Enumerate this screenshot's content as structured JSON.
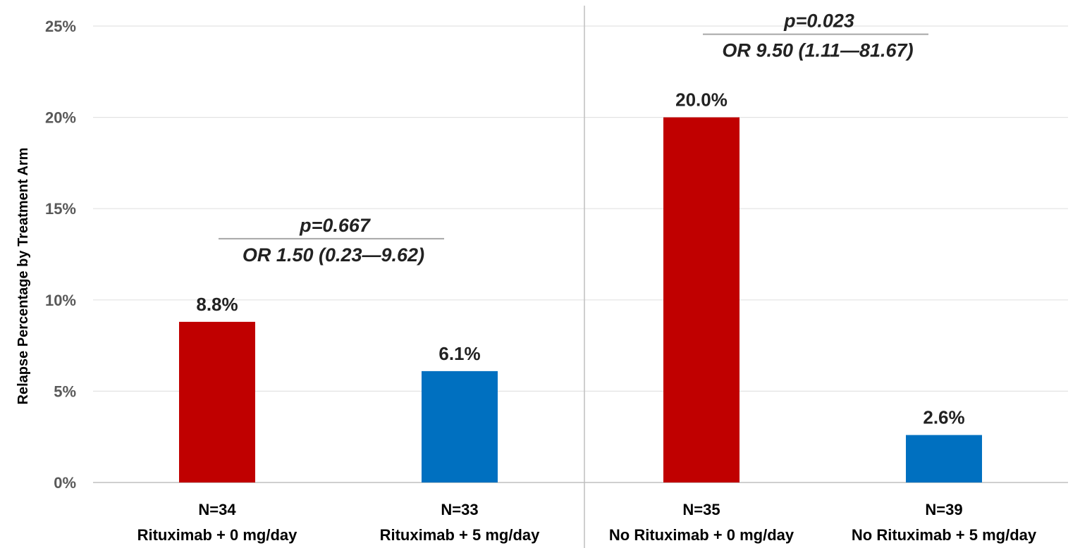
{
  "chart_data": {
    "type": "bar",
    "title": "",
    "xlabel": "",
    "ylabel": "Relapse Percentage by Treatment Arm",
    "ylim": [
      0,
      25
    ],
    "y_ticks": [
      "0%",
      "5%",
      "10%",
      "15%",
      "20%",
      "25%"
    ],
    "grid": true,
    "legend": "none",
    "categories": [
      {
        "n": "N=34",
        "label": "Rituximab + 0 mg/day"
      },
      {
        "n": "N=33",
        "label": "Rituximab + 5 mg/day"
      },
      {
        "n": "N=35",
        "label": "No Rituximab + 0 mg/day"
      },
      {
        "n": "N=39",
        "label": "No Rituximab + 5 mg/day"
      }
    ],
    "values": [
      8.8,
      6.1,
      20.0,
      2.6
    ],
    "data_labels": [
      "8.8%",
      "6.1%",
      "20.0%",
      "2.6%"
    ],
    "bar_colors": [
      "#c00000",
      "#0070c0",
      "#c00000",
      "#0070c0"
    ],
    "annotations": [
      {
        "p": "p=0.667",
        "or": "OR 1.50 (0.23—9.62)"
      },
      {
        "p": "p=0.023",
        "or": "OR 9.50 (1.11—81.67)"
      }
    ]
  }
}
